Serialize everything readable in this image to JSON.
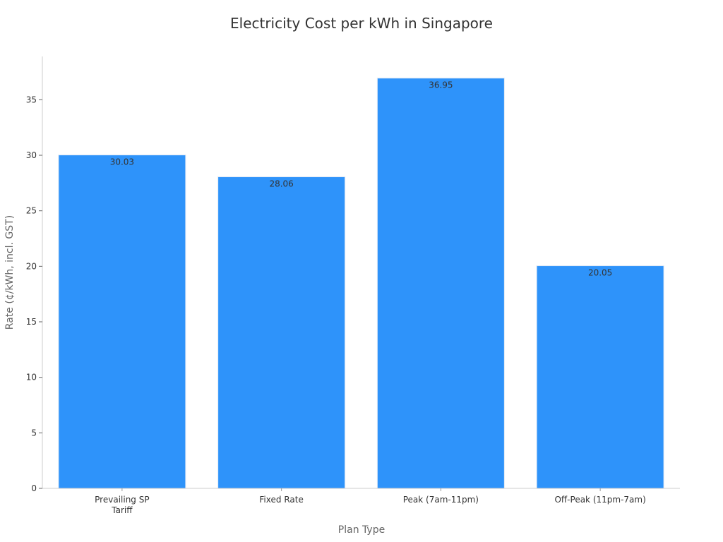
{
  "chart_data": {
    "type": "bar",
    "title": "Electricity Cost per kWh in Singapore",
    "xlabel": "Plan Type",
    "ylabel": "Rate (¢/kWh, incl. GST)",
    "categories": [
      [
        "Prevailing SP",
        "Tariff"
      ],
      [
        "Fixed Rate"
      ],
      [
        "Peak (7am-11pm)"
      ],
      [
        "Off-Peak (11pm-7am)"
      ]
    ],
    "values": [
      30.03,
      28.06,
      36.95,
      20.05
    ],
    "data_labels": [
      "30.03",
      "28.06",
      "36.95",
      "20.05"
    ],
    "yticks": [
      0,
      5,
      10,
      15,
      20,
      25,
      30,
      35
    ],
    "ylim": [
      0,
      38.9
    ],
    "grid": false,
    "bar_color": "#2E93FA"
  }
}
